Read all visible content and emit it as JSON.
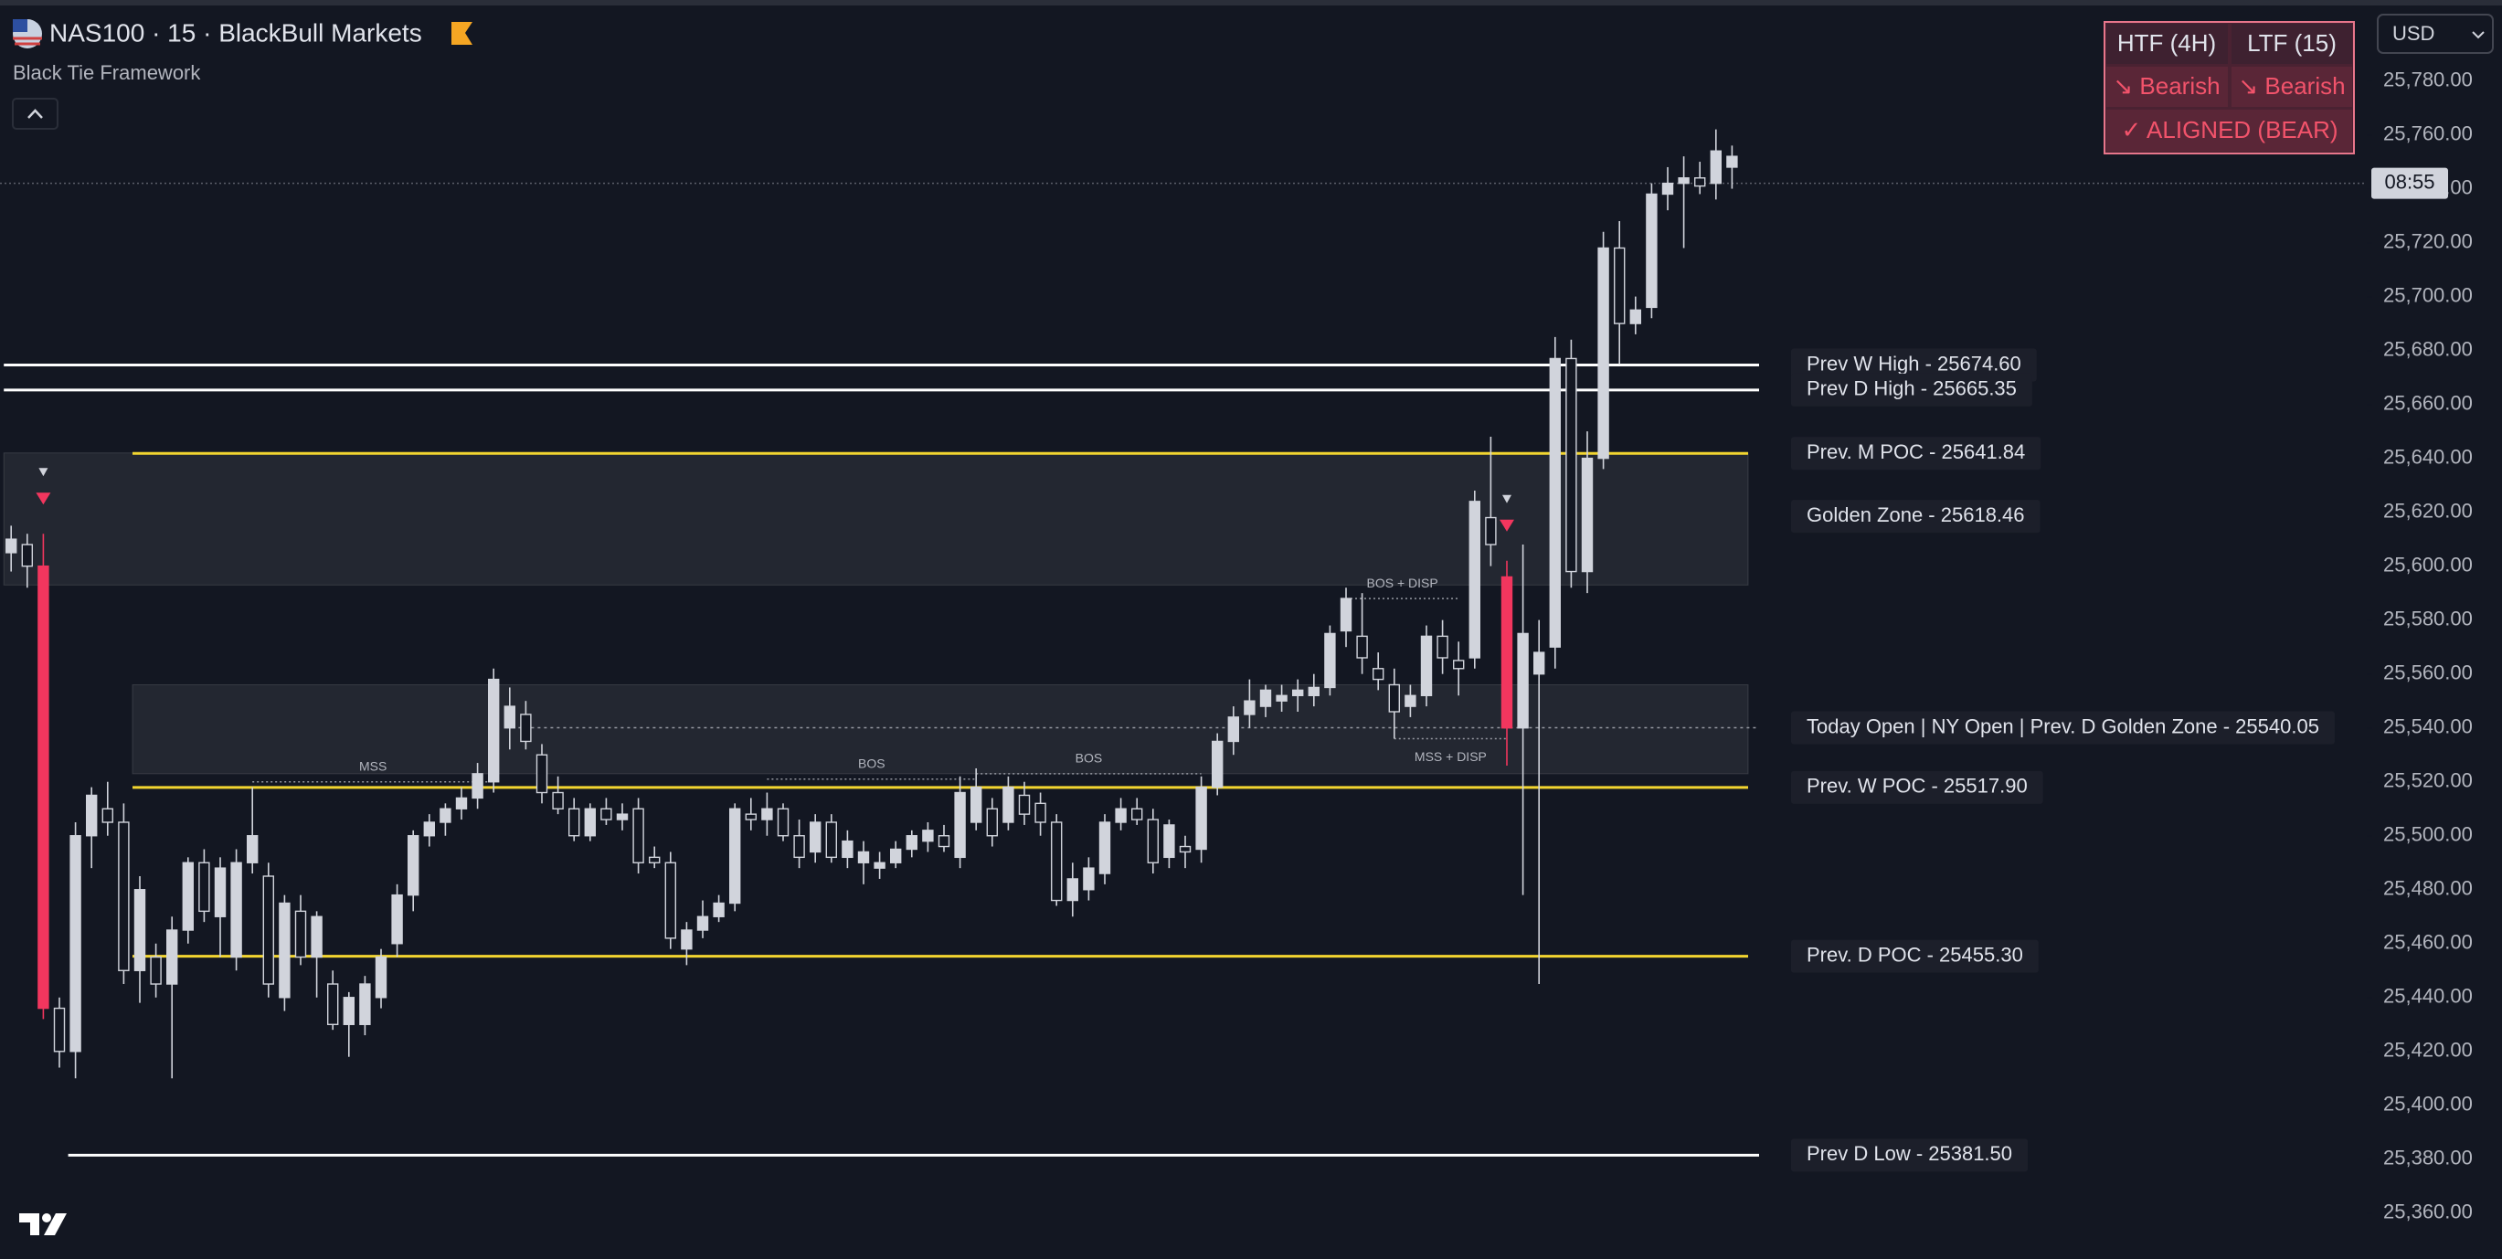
{
  "chart_data": {
    "type": "candlestick",
    "title": "NAS100 · 15 · BlackBull Markets",
    "subtitle": "Black Tie Framework",
    "currency": "USD",
    "countdown": "08:55",
    "current_price": 25742,
    "up_color": "#d1d4dc",
    "down_color": "#131722",
    "wick_color": "#d1d4dc",
    "highlight_color": "#f2365e",
    "highlight": [
      2,
      93
    ],
    "signals": [
      2,
      93
    ],
    "open": [
      25605,
      25608,
      25600,
      25436,
      25420,
      25500,
      25510,
      25505,
      25450,
      25455,
      25445,
      25465,
      25490,
      25470,
      25455,
      25490,
      25485,
      25440,
      25472,
      25455,
      25445,
      25430,
      25430,
      25440,
      25460,
      25478,
      25500,
      25505,
      25510,
      25514,
      25520,
      25540,
      25545,
      25530,
      25516,
      25510,
      25500,
      25510,
      25506,
      25510,
      25492,
      25490,
      25458,
      25465,
      25470,
      25475,
      25508,
      25506,
      25510,
      25500,
      25494,
      25505,
      25492,
      25490,
      25488,
      25490,
      25495,
      25498,
      25500,
      25492,
      25505,
      25510,
      25505,
      25515,
      25512,
      25505,
      25476,
      25480,
      25486,
      25505,
      25510,
      25506,
      25492,
      25496,
      25495,
      25518,
      25535,
      25545,
      25548,
      25550,
      25552,
      25552,
      25555,
      25576,
      25574,
      25562,
      25556,
      25548,
      25552,
      25574,
      25565,
      25566,
      25618,
      25596,
      25540,
      25560,
      25570,
      25677,
      25598,
      25640,
      25718,
      25690,
      25696,
      25738,
      25742,
      25744,
      25742,
      25748
    ],
    "high": [
      25615,
      25612,
      25612,
      25440,
      25505,
      25518,
      25520,
      25512,
      25485,
      25460,
      25470,
      25492,
      25495,
      25492,
      25495,
      25518,
      25490,
      25478,
      25478,
      25472,
      25450,
      25442,
      25448,
      25458,
      25482,
      25502,
      25508,
      25512,
      25518,
      25527,
      25562,
      25555,
      25550,
      25534,
      25522,
      25514,
      25512,
      25514,
      25512,
      25514,
      25496,
      25494,
      25468,
      25476,
      25478,
      25512,
      25514,
      25516,
      25512,
      25506,
      25508,
      25508,
      25502,
      25498,
      25494,
      25498,
      25502,
      25505,
      25504,
      25522,
      25525,
      25514,
      25522,
      25520,
      25516,
      25508,
      25490,
      25492,
      25508,
      25514,
      25514,
      25510,
      25506,
      25500,
      25522,
      25538,
      25548,
      25558,
      25556,
      25556,
      25558,
      25560,
      25578,
      25592,
      25590,
      25568,
      25562,
      25556,
      25578,
      25580,
      25572,
      25628,
      25648,
      25602,
      25608,
      25580,
      25685,
      25684,
      25650,
      25724,
      25728,
      25700,
      25742,
      25748,
      25752,
      25750,
      25762,
      25756
    ],
    "low": [
      25598,
      25592,
      25432,
      25414,
      25410,
      25488,
      25500,
      25445,
      25438,
      25440,
      25410,
      25460,
      25468,
      25455,
      25450,
      25486,
      25440,
      25435,
      25452,
      25440,
      25428,
      25418,
      25426,
      25436,
      25455,
      25472,
      25496,
      25500,
      25506,
      25510,
      25516,
      25532,
      25532,
      25512,
      25508,
      25498,
      25498,
      25504,
      25502,
      25486,
      25488,
      25458,
      25452,
      25462,
      25468,
      25472,
      25502,
      25500,
      25498,
      25488,
      25490,
      25490,
      25488,
      25482,
      25484,
      25488,
      25492,
      25494,
      25494,
      25488,
      25502,
      25496,
      25502,
      25504,
      25500,
      25474,
      25470,
      25476,
      25482,
      25502,
      25504,
      25486,
      25488,
      25488,
      25490,
      25515,
      25530,
      25540,
      25544,
      25546,
      25546,
      25548,
      25552,
      25570,
      25560,
      25554,
      25536,
      25544,
      25548,
      25560,
      25552,
      25562,
      25600,
      25526,
      25478,
      25445,
      25562,
      25592,
      25590,
      25636,
      25675,
      25686,
      25692,
      25732,
      25718,
      25738,
      25736,
      25740
    ],
    "close": [
      25610,
      25600,
      25436,
      25420,
      25500,
      25515,
      25505,
      25450,
      25480,
      25445,
      25465,
      25490,
      25472,
      25488,
      25490,
      25500,
      25445,
      25475,
      25455,
      25470,
      25430,
      25440,
      25445,
      25455,
      25478,
      25500,
      25505,
      25510,
      25514,
      25523,
      25558,
      25548,
      25535,
      25516,
      25510,
      25500,
      25510,
      25506,
      25508,
      25490,
      25490,
      25462,
      25465,
      25470,
      25475,
      25510,
      25506,
      25510,
      25500,
      25492,
      25505,
      25492,
      25498,
      25494,
      25490,
      25495,
      25500,
      25502,
      25496,
      25516,
      25518,
      25500,
      25518,
      25508,
      25505,
      25476,
      25484,
      25488,
      25505,
      25510,
      25506,
      25490,
      25504,
      25494,
      25518,
      25535,
      25544,
      25550,
      25554,
      25552,
      25554,
      25555,
      25575,
      25588,
      25566,
      25558,
      25546,
      25552,
      25574,
      25566,
      25562,
      25624,
      25608,
      25540,
      25575,
      25568,
      25677,
      25598,
      25640,
      25718,
      25690,
      25695,
      25738,
      25742,
      25744,
      25741,
      25754,
      25752
    ],
    "ylim": [
      25343,
      25810
    ],
    "yticks": [
      {
        "value": 25360,
        "label": "25,360.00"
      },
      {
        "value": 25380,
        "label": "25,380.00"
      },
      {
        "value": 25400,
        "label": "25,400.00"
      },
      {
        "value": 25420,
        "label": "25,420.00"
      },
      {
        "value": 25440,
        "label": "25,440.00"
      },
      {
        "value": 25460,
        "label": "25,460.00"
      },
      {
        "value": 25480,
        "label": "25,480.00"
      },
      {
        "value": 25500,
        "label": "25,500.00"
      },
      {
        "value": 25520,
        "label": "25,520.00"
      },
      {
        "value": 25540,
        "label": "25,540.00"
      },
      {
        "value": 25560,
        "label": "25,560.00"
      },
      {
        "value": 25580,
        "label": "25,580.00"
      },
      {
        "value": 25600,
        "label": "25,600.00"
      },
      {
        "value": 25620,
        "label": "25,620.00"
      },
      {
        "value": 25640,
        "label": "25,640.00"
      },
      {
        "value": 25660,
        "label": "25,660.00"
      },
      {
        "value": 25680,
        "label": "25,680.00"
      },
      {
        "value": 25700,
        "label": "25,700.00"
      },
      {
        "value": 25720,
        "label": "25,720.00"
      },
      {
        "value": 25740,
        "label": "25,740.00"
      },
      {
        "value": 25760,
        "label": "25,760.00"
      },
      {
        "value": 25780,
        "label": "25,780.00"
      }
    ],
    "grid": false,
    "zones": [
      {
        "top": 25642,
        "bottom": 25593,
        "start": 0
      },
      {
        "top": 25556,
        "bottom": 25523,
        "start": 8
      }
    ],
    "levels": [
      {
        "label": "Prev W High - 25674.60",
        "value": 25674.6,
        "color": "#ffffff",
        "style": "solid",
        "start": 0
      },
      {
        "label": "Prev D High - 25665.35",
        "value": 25665.35,
        "color": "#ffffff",
        "style": "solid",
        "start": 0
      },
      {
        "label": "Prev. M POC - 25641.84",
        "value": 25641.84,
        "color": "#f2d530",
        "style": "solid",
        "start": 8
      },
      {
        "label": "Golden Zone - 25618.46",
        "value": 25618.46,
        "color": "#9598a1",
        "style": "none",
        "start": 0
      },
      {
        "label": "Today Open | NY Open | Prev. D Golden Zone - 25540.05",
        "value": 25540.05,
        "color": "#9598a1",
        "style": "dotted",
        "start": 32
      },
      {
        "label": "Prev. W POC - 25517.90",
        "value": 25517.9,
        "color": "#f2d530",
        "style": "solid",
        "start": 8
      },
      {
        "label": "Prev. D POC - 25455.30",
        "value": 25455.3,
        "color": "#f2d530",
        "style": "solid",
        "start": 8
      },
      {
        "label": "Prev D Low - 25381.50",
        "value": 25381.5,
        "color": "#ffffff",
        "style": "solid",
        "start": 4
      }
    ],
    "annotations": [
      {
        "text": "MSS",
        "value": 25520,
        "start": 15,
        "end": 30,
        "label": "above"
      },
      {
        "text": "BOS",
        "value": 25521,
        "start": 47,
        "end": 60,
        "label": "above"
      },
      {
        "text": "BOS",
        "value": 25523,
        "start": 60,
        "end": 74,
        "label": "above"
      },
      {
        "text": "BOS + DISP",
        "value": 25588,
        "start": 83,
        "end": 90,
        "label": "above"
      },
      {
        "text": "MSS + DISP",
        "value": 25536,
        "start": 86,
        "end": 93,
        "label": "below"
      }
    ]
  },
  "ui": {
    "table_header": [
      "HTF (4H)",
      "LTF (15)"
    ],
    "table_row": [
      "↘ Bearish",
      "↘ Bearish"
    ],
    "table_status": "✓ ALIGNED (BEAR)"
  }
}
